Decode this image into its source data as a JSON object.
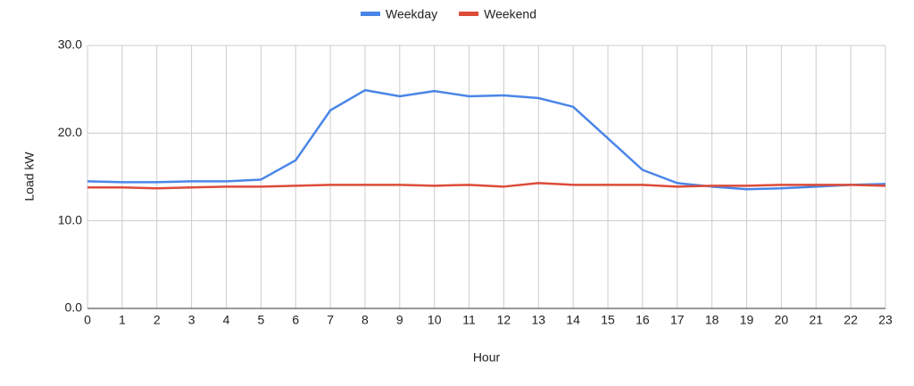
{
  "chart_data": {
    "type": "line",
    "x_label": "Hour",
    "y_label": "Load kW",
    "x": [
      0,
      1,
      2,
      3,
      4,
      5,
      6,
      7,
      8,
      9,
      10,
      11,
      12,
      13,
      14,
      15,
      16,
      17,
      18,
      19,
      20,
      21,
      22,
      23
    ],
    "series": [
      {
        "name": "Weekday",
        "color": "#4a86e8",
        "values": [
          14.5,
          14.4,
          14.4,
          14.5,
          14.5,
          14.7,
          16.9,
          22.6,
          24.9,
          24.2,
          24.8,
          24.2,
          24.3,
          24.0,
          23.0,
          19.4,
          15.8,
          14.3,
          13.9,
          13.6,
          13.7,
          13.9,
          14.1,
          14.2
        ]
      },
      {
        "name": "Weekend",
        "color": "#dd4b39",
        "values": [
          13.8,
          13.8,
          13.7,
          13.8,
          13.9,
          13.9,
          14.0,
          14.1,
          14.1,
          14.1,
          14.0,
          14.1,
          13.9,
          14.3,
          14.1,
          14.1,
          14.1,
          13.9,
          14.0,
          14.0,
          14.1,
          14.1,
          14.1,
          14.0
        ]
      }
    ],
    "xlim": [
      0,
      23
    ],
    "xticks": [
      0,
      1,
      2,
      3,
      4,
      5,
      6,
      7,
      8,
      9,
      10,
      11,
      12,
      13,
      14,
      15,
      16,
      17,
      18,
      19,
      20,
      21,
      22,
      23
    ],
    "ylim": [
      0,
      30
    ],
    "yticks": [
      {
        "value": 0,
        "label": "0.0"
      },
      {
        "value": 10,
        "label": "10.0"
      },
      {
        "value": 20,
        "label": "20.0"
      },
      {
        "value": 30,
        "label": "30.0"
      }
    ],
    "grid": true,
    "legend": "top"
  }
}
